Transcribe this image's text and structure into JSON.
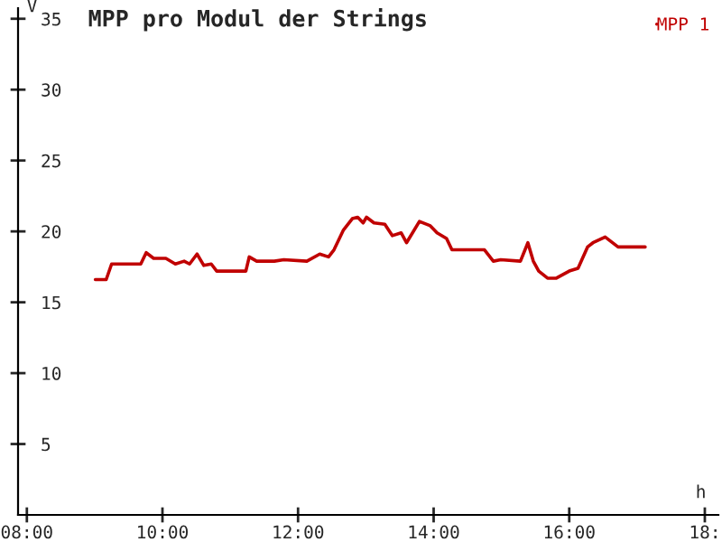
{
  "chart_data": {
    "type": "line",
    "title": "MPP pro Modul der Strings",
    "xlabel": "h",
    "ylabel": "V",
    "xlim": [
      7.87,
      18.2
    ],
    "ylim": [
      0,
      35.75
    ],
    "xticks": [
      {
        "value": 8,
        "label": "08:00"
      },
      {
        "value": 10,
        "label": "10:00"
      },
      {
        "value": 12,
        "label": "12:00"
      },
      {
        "value": 14,
        "label": "14:00"
      },
      {
        "value": 16,
        "label": "16:00"
      },
      {
        "value": 18,
        "label": "18:"
      }
    ],
    "yticks": [
      5,
      10,
      15,
      20,
      25,
      30,
      35
    ],
    "grid": false,
    "legend": "top right",
    "marker": "none",
    "line_style": "solid",
    "series": [
      {
        "name": "MPP 1",
        "color": "#c00000",
        "x": [
          9.01,
          9.17,
          9.25,
          9.68,
          9.76,
          9.87,
          10.05,
          10.19,
          10.32,
          10.4,
          10.51,
          10.61,
          10.72,
          10.8,
          11.23,
          11.28,
          11.39,
          11.65,
          11.79,
          12.13,
          12.32,
          12.45,
          12.53,
          12.67,
          12.8,
          12.88,
          12.96,
          13.01,
          13.12,
          13.28,
          13.39,
          13.52,
          13.6,
          13.79,
          13.95,
          14.05,
          14.19,
          14.27,
          14.75,
          14.88,
          14.99,
          15.28,
          15.39,
          15.47,
          15.55,
          15.68,
          15.81,
          16.0,
          16.13,
          16.27,
          16.35,
          16.53,
          16.72,
          17.12
        ],
        "values": [
          16.6,
          16.6,
          17.7,
          17.7,
          18.5,
          18.1,
          18.1,
          17.7,
          17.9,
          17.7,
          18.4,
          17.6,
          17.7,
          17.2,
          17.2,
          18.2,
          17.9,
          17.9,
          18.0,
          17.9,
          18.4,
          18.2,
          18.7,
          20.1,
          20.9,
          21.0,
          20.6,
          21.0,
          20.6,
          20.5,
          19.7,
          19.9,
          19.2,
          20.7,
          20.4,
          19.9,
          19.5,
          18.7,
          18.7,
          17.9,
          18.0,
          17.9,
          19.2,
          17.9,
          17.2,
          16.7,
          16.7,
          17.2,
          17.4,
          18.9,
          19.2,
          19.6,
          18.9,
          18.9
        ]
      }
    ]
  }
}
